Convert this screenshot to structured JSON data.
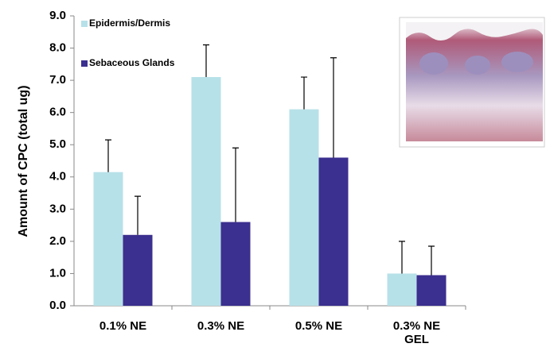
{
  "chart_data": {
    "type": "bar",
    "y_label": "Amount of CPC (total ug)",
    "categories": [
      "0.1% NE",
      "0.3% NE",
      "0.5% NE",
      "0.3% NE GEL"
    ],
    "series": [
      {
        "name": "Epidermis/Dermis",
        "color": "#b7e1e8",
        "values": [
          4.15,
          7.1,
          6.1,
          1.0
        ],
        "errors": [
          1.0,
          1.0,
          1.0,
          1.0
        ]
      },
      {
        "name": "Sebaceous Glands",
        "color": "#3b2f8f",
        "values": [
          2.2,
          2.6,
          4.6,
          0.95
        ],
        "errors": [
          1.2,
          2.3,
          3.1,
          0.9
        ]
      }
    ],
    "ylim": [
      0,
      9
    ],
    "yticks": [
      {
        "value": 0,
        "label": "0.0"
      },
      {
        "value": 1,
        "label": "1.0"
      },
      {
        "value": 2,
        "label": "2.0"
      },
      {
        "value": 3,
        "label": "3.0"
      },
      {
        "value": 4,
        "label": "4.0"
      },
      {
        "value": 5,
        "label": "5.0"
      },
      {
        "value": 6,
        "label": "6.0"
      },
      {
        "value": 7,
        "label": "7.0"
      },
      {
        "value": 8,
        "label": "8.0"
      },
      {
        "value": 9,
        "label": "9.0"
      }
    ],
    "legend": "top-left"
  }
}
